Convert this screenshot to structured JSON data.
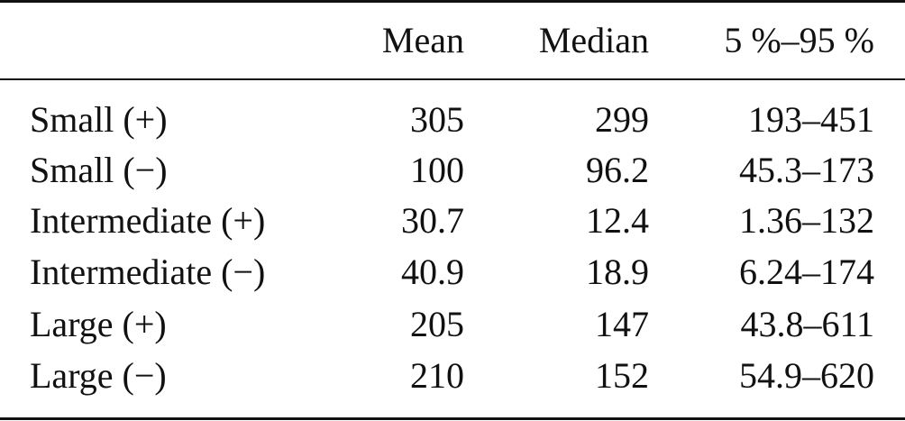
{
  "table": {
    "columns": [
      "Mean",
      "Median",
      "5 %–95 %"
    ],
    "rows": [
      {
        "label": "Small (+)",
        "cells": [
          "305",
          "299",
          "193–451"
        ]
      },
      {
        "label": "Small (−)",
        "cells": [
          "100",
          "96.2",
          "45.3–173"
        ]
      },
      {
        "label": "Intermediate (+)",
        "cells": [
          "30.7",
          "12.4",
          "1.36–132"
        ]
      },
      {
        "label": "Intermediate (−)",
        "cells": [
          "40.9",
          "18.9",
          "6.24–174"
        ]
      },
      {
        "label": "Large (+)",
        "cells": [
          "205",
          "147",
          "43.8–611"
        ]
      },
      {
        "label": "Large (−)",
        "cells": [
          "210",
          "152",
          "54.9–620"
        ]
      }
    ]
  }
}
